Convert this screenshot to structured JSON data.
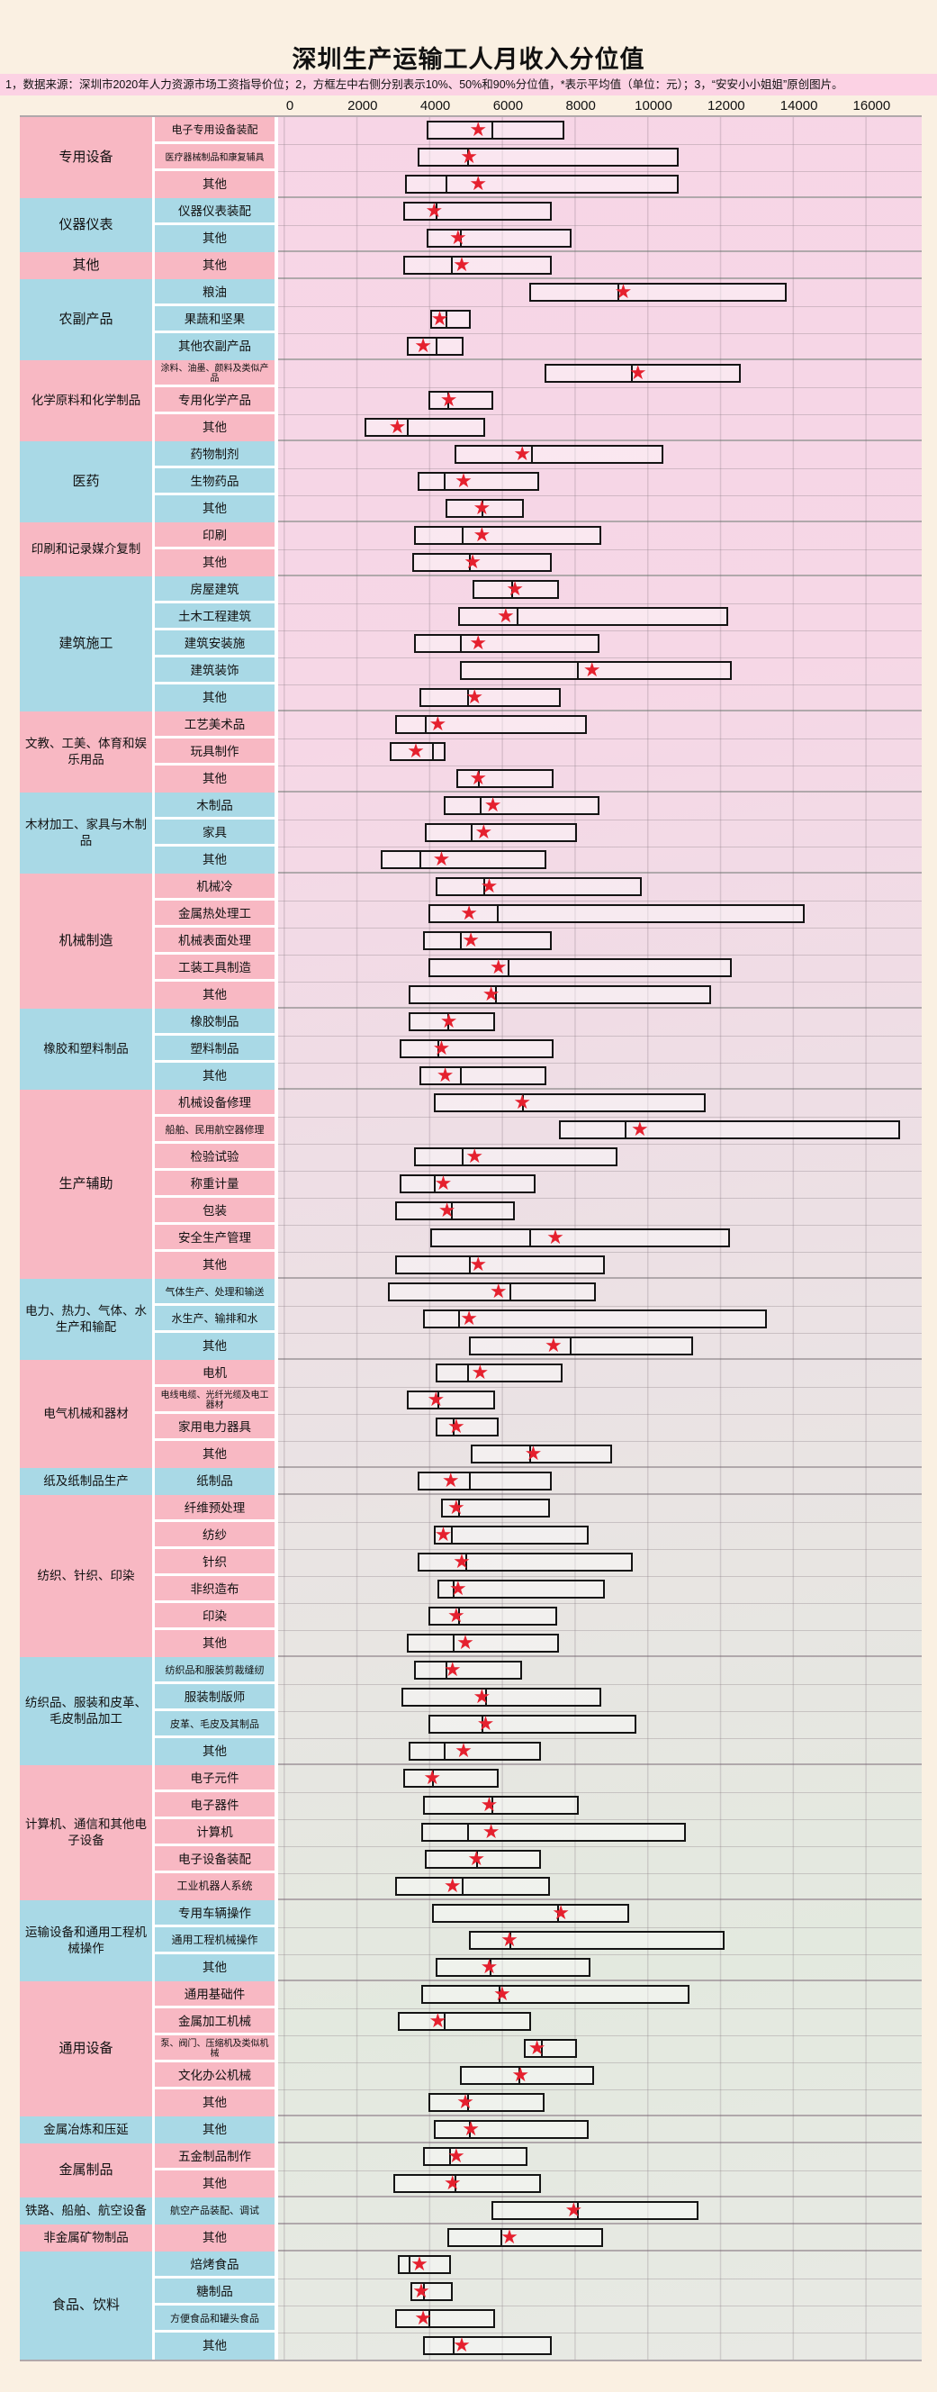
{
  "title": "深圳生产运输工人月收入分位值",
  "note": "1，数据来源：深圳市2020年人力资源市场工资指导价位；2，方框左中右侧分别表示10%、50%和90%分位值，*表示平均值（单位：元）；3，“安安小小姐姐”原创图片。",
  "colors": {
    "page_bg": "#faf0e2",
    "note_bg": "#fcd2e4",
    "group_pink": "#f8b8c3",
    "group_blue": "#a9d9e6",
    "star_red": "#e5202e",
    "box_border": "#141414",
    "separator_gray": "#b0a8ab"
  },
  "chart_data": {
    "type": "percentile-range-box",
    "title": "深圳生产运输工人月收入分位值",
    "unit": "元",
    "value_format": [
      "p10",
      "p50",
      "p90",
      "mean"
    ],
    "series_labels": {
      "p10": "10%分位值",
      "p50": "50%分位值",
      "p90": "90%分位值",
      "mean": "平均值"
    },
    "xlim": [
      0,
      17400
    ],
    "ticks": [
      0,
      2000,
      4000,
      6000,
      8000,
      10000,
      12000,
      14000,
      16000
    ],
    "grid": true,
    "groups": [
      {
        "name": "专用设备",
        "color": "pink",
        "rows": [
          {
            "label": "电子专用设备装配",
            "v": [
              3900,
              5650,
              7650,
              5300
            ]
          },
          {
            "label": "医疗器械制品和康复辅具",
            "v": [
              3650,
              5000,
              10750,
              5050
            ]
          },
          {
            "label": "其他",
            "v": [
              3300,
              4400,
              10750,
              5300
            ]
          }
        ]
      },
      {
        "name": "仪器仪表",
        "color": "blue",
        "rows": [
          {
            "label": "仪器仪表装配",
            "v": [
              3250,
              4150,
              7300,
              4100
            ]
          },
          {
            "label": "其他",
            "v": [
              3900,
              4800,
              7850,
              4750
            ]
          }
        ]
      },
      {
        "name": "其他",
        "color": "pink",
        "rows": [
          {
            "label": "其他",
            "v": [
              3250,
              4550,
              7300,
              4850
            ]
          }
        ]
      },
      {
        "name": "农副产品",
        "color": "blue",
        "rows": [
          {
            "label": "粮油",
            "v": [
              6700,
              9100,
              13700,
              9250
            ]
          },
          {
            "label": "果蔬和坚果",
            "v": [
              4000,
              4400,
              5100,
              4250
            ]
          },
          {
            "label": "其他农副产品",
            "v": [
              3350,
              4150,
              4900,
              3800
            ]
          }
        ]
      },
      {
        "name": "化学原料和化学制品",
        "color": "pink",
        "rows": [
          {
            "label": "涂料、油墨、颜料及类似产品",
            "v": [
              7100,
              9450,
              12450,
              9650
            ]
          },
          {
            "label": "专用化学产品",
            "v": [
              3950,
              4450,
              5700,
              4500
            ]
          },
          {
            "label": "其他",
            "v": [
              2200,
              3350,
              5500,
              3100
            ]
          }
        ]
      },
      {
        "name": "医药",
        "color": "blue",
        "rows": [
          {
            "label": "药物制剂",
            "v": [
              4650,
              6750,
              10350,
              6500
            ]
          },
          {
            "label": "生物药品",
            "v": [
              3650,
              4350,
              6950,
              4900
            ]
          },
          {
            "label": "其他",
            "v": [
              4400,
              5400,
              6550,
              5400
            ]
          }
        ]
      },
      {
        "name": "印刷和记录媒介复制",
        "color": "pink",
        "rows": [
          {
            "label": "印刷",
            "v": [
              3550,
              4850,
              8650,
              5400
            ]
          },
          {
            "label": "其他",
            "v": [
              3500,
              5050,
              7300,
              5150
            ]
          }
        ]
      },
      {
        "name": "建筑施工",
        "color": "blue",
        "rows": [
          {
            "label": "房屋建筑",
            "v": [
              5150,
              6200,
              7500,
              6300
            ]
          },
          {
            "label": "土木工程建筑",
            "v": [
              4750,
              6350,
              12100,
              6050
            ]
          },
          {
            "label": "建筑安装施",
            "v": [
              3550,
              4800,
              8600,
              5300
            ]
          },
          {
            "label": "建筑装饰",
            "v": [
              4800,
              8000,
              12200,
              8400
            ]
          },
          {
            "label": "其他",
            "v": [
              3700,
              5000,
              7550,
              5200
            ]
          }
        ]
      },
      {
        "name": "文教、工美、体育和娱乐用品",
        "color": "pink",
        "rows": [
          {
            "label": "工艺美术品",
            "v": [
              3050,
              3850,
              8250,
              4200
            ]
          },
          {
            "label": "玩具制作",
            "v": [
              2900,
              4050,
              4400,
              3600
            ]
          },
          {
            "label": "其他",
            "v": [
              4700,
              5300,
              7350,
              5300
            ]
          }
        ]
      },
      {
        "name": "木材加工、家具与木制品",
        "color": "blue",
        "rows": [
          {
            "label": "木制品",
            "v": [
              4350,
              5350,
              8600,
              5700
            ]
          },
          {
            "label": "家具",
            "v": [
              3850,
              5100,
              8000,
              5450
            ]
          },
          {
            "label": "其他",
            "v": [
              2650,
              3700,
              7150,
              4300
            ]
          }
        ]
      },
      {
        "name": "机械制造",
        "color": "pink",
        "rows": [
          {
            "label": "机械冷",
            "v": [
              4150,
              5450,
              9750,
              5600
            ]
          },
          {
            "label": "金属热处理工",
            "v": [
              3950,
              5800,
              14200,
              5050
            ]
          },
          {
            "label": "机械表面处理",
            "v": [
              3800,
              4800,
              7300,
              5100
            ]
          },
          {
            "label": "工装工具制造",
            "v": [
              3950,
              6100,
              12200,
              5850
            ]
          },
          {
            "label": "其他",
            "v": [
              3400,
              5750,
              11650,
              5650
            ]
          }
        ]
      },
      {
        "name": "橡胶和塑料制品",
        "color": "blue",
        "rows": [
          {
            "label": "橡胶制品",
            "v": [
              3400,
              4450,
              5750,
              4500
            ]
          },
          {
            "label": "塑料制品",
            "v": [
              3150,
              4200,
              7350,
              4300
            ]
          },
          {
            "label": "其他",
            "v": [
              3700,
              4800,
              7150,
              4400
            ]
          }
        ]
      },
      {
        "name": "生产辅助",
        "color": "pink",
        "rows": [
          {
            "label": "机械设备修理",
            "v": [
              4100,
              6500,
              11500,
              6500
            ]
          },
          {
            "label": "船舶、民用航空器修理",
            "v": [
              7500,
              9300,
              16800,
              9700
            ]
          },
          {
            "label": "检验试验",
            "v": [
              3550,
              4850,
              9100,
              5200
            ]
          },
          {
            "label": "称重计量",
            "v": [
              3150,
              4100,
              6850,
              4350
            ]
          },
          {
            "label": "包装",
            "v": [
              3050,
              4550,
              6300,
              4450
            ]
          },
          {
            "label": "安全生产管理",
            "v": [
              4000,
              6700,
              12150,
              7400
            ]
          },
          {
            "label": "其他",
            "v": [
              3050,
              5050,
              8750,
              5300
            ]
          }
        ]
      },
      {
        "name": "电力、热力、气体、水生产和输配",
        "color": "blue",
        "rows": [
          {
            "label": "气体生产、处理和输送",
            "v": [
              2850,
              6150,
              8500,
              5850
            ]
          },
          {
            "label": "水生产、输排和水",
            "v": [
              3800,
              4750,
              13150,
              5050
            ]
          },
          {
            "label": "其他",
            "v": [
              5050,
              7800,
              11150,
              7350
            ]
          }
        ]
      },
      {
        "name": "电气机械和器材",
        "color": "pink",
        "rows": [
          {
            "label": "电机",
            "v": [
              4150,
              5000,
              7600,
              5350
            ]
          },
          {
            "label": "电线电缆、光纤光缆及电工器材",
            "v": [
              3350,
              4200,
              5750,
              4150
            ]
          },
          {
            "label": "家用电力器具",
            "v": [
              4150,
              4600,
              5850,
              4700
            ]
          },
          {
            "label": "其他",
            "v": [
              5100,
              6700,
              8950,
              6800
            ]
          }
        ]
      },
      {
        "name": "纸及纸制品生产",
        "color": "blue",
        "rows": [
          {
            "label": "纸制品",
            "v": [
              3650,
              5050,
              7300,
              4550
            ]
          }
        ]
      },
      {
        "name": "纺织、针织、印染",
        "color": "pink",
        "rows": [
          {
            "label": "纤维预处理",
            "v": [
              4300,
              4750,
              7250,
              4700
            ]
          },
          {
            "label": "纺纱",
            "v": [
              4100,
              4550,
              8300,
              4350
            ]
          },
          {
            "label": "针织",
            "v": [
              3650,
              4950,
              9500,
              4850
            ]
          },
          {
            "label": "非织造布",
            "v": [
              4200,
              4600,
              8750,
              4750
            ]
          },
          {
            "label": "印染",
            "v": [
              3950,
              4750,
              7450,
              4700
            ]
          },
          {
            "label": "其他",
            "v": [
              3350,
              4600,
              7500,
              4950
            ]
          }
        ]
      },
      {
        "name": "纺织品、服装和皮革、毛皮制品加工",
        "color": "blue",
        "rows": [
          {
            "label": "纺织品和服装剪裁缝纫",
            "v": [
              3550,
              4400,
              6500,
              4600
            ]
          },
          {
            "label": "服装制版师",
            "v": [
              3200,
              5500,
              8650,
              5400
            ]
          },
          {
            "label": "皮革、毛皮及其制品",
            "v": [
              3950,
              5400,
              9600,
              5500
            ]
          },
          {
            "label": "其他",
            "v": [
              3400,
              4350,
              7000,
              4900
            ]
          }
        ]
      },
      {
        "name": "计算机、通信和其他电子设备",
        "color": "pink",
        "rows": [
          {
            "label": "电子元件",
            "v": [
              3250,
              4050,
              5850,
              4050
            ]
          },
          {
            "label": "电子器件",
            "v": [
              3800,
              5650,
              8050,
              5600
            ]
          },
          {
            "label": "计算机",
            "v": [
              3750,
              5000,
              10950,
              5650
            ]
          },
          {
            "label": "电子设备装配",
            "v": [
              3850,
              5250,
              7000,
              5250
            ]
          },
          {
            "label": "工业机器人系统",
            "v": [
              3050,
              4850,
              7250,
              4600
            ]
          }
        ]
      },
      {
        "name": "运输设备和通用工程机械操作",
        "color": "blue",
        "rows": [
          {
            "label": "专用车辆操作",
            "v": [
              4050,
              7450,
              9400,
              7550
            ]
          },
          {
            "label": "通用工程机械操作",
            "v": [
              5050,
              6150,
              12000,
              6150
            ]
          },
          {
            "label": "其他",
            "v": [
              4150,
              5600,
              8350,
              5600
            ]
          }
        ]
      },
      {
        "name": "通用设备",
        "color": "pink",
        "rows": [
          {
            "label": "通用基础件",
            "v": [
              3750,
              5850,
              11050,
              5950
            ]
          },
          {
            "label": "金属加工机械",
            "v": [
              3100,
              4350,
              6750,
              4200
            ]
          },
          {
            "label": "泵、阀门、压缩机及类似机械",
            "v": [
              6550,
              7000,
              8000,
              6900
            ]
          },
          {
            "label": "文化办公机械",
            "v": [
              4800,
              6400,
              8450,
              6450
            ]
          },
          {
            "label": "其他",
            "v": [
              3950,
              5000,
              7100,
              4950
            ]
          }
        ]
      },
      {
        "name": "金属冶炼和压延",
        "color": "blue",
        "rows": [
          {
            "label": "其他",
            "v": [
              4100,
              5050,
              8300,
              5100
            ]
          }
        ]
      },
      {
        "name": "金属制品",
        "color": "pink",
        "rows": [
          {
            "label": "五金制品制作",
            "v": [
              3800,
              4500,
              6650,
              4700
            ]
          },
          {
            "label": "其他",
            "v": [
              3000,
              4650,
              7000,
              4600
            ]
          }
        ]
      },
      {
        "name": "铁路、船舶、航空设备",
        "color": "blue",
        "rows": [
          {
            "label": "航空产品装配、调试",
            "v": [
              5650,
              8000,
              11300,
              7900
            ]
          }
        ]
      },
      {
        "name": "非金属矿物制品",
        "color": "pink",
        "rows": [
          {
            "label": "其他",
            "v": [
              4450,
              5900,
              8700,
              6150
            ]
          }
        ]
      },
      {
        "name": "食品、饮料",
        "color": "blue",
        "rows": [
          {
            "label": "焙烤食品",
            "v": [
              3100,
              3400,
              4550,
              3700
            ]
          },
          {
            "label": "糖制品",
            "v": [
              3450,
              3800,
              4600,
              3750
            ]
          },
          {
            "label": "方便食品和罐头食品",
            "v": [
              3050,
              3950,
              5750,
              3800
            ]
          },
          {
            "label": "其他",
            "v": [
              3800,
              4600,
              7300,
              4850
            ]
          }
        ]
      }
    ]
  }
}
